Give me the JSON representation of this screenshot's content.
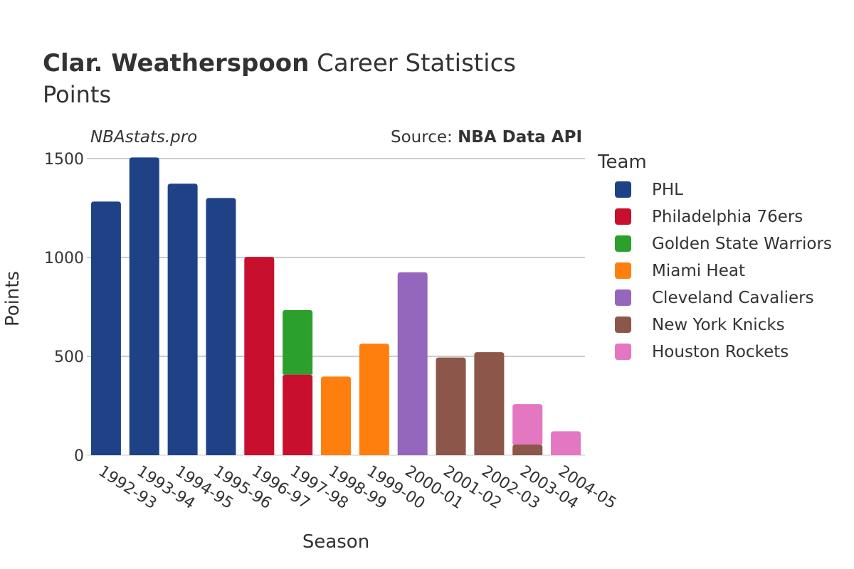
{
  "chart_data": {
    "type": "bar",
    "stacked": true,
    "title_bold": "Clar. Weatherspoon",
    "title_rest": "Career Statistics",
    "subtitle": "Points",
    "watermark": "NBAstats.pro",
    "source_label": "Source: ",
    "source_name": "NBA Data API",
    "xlabel": "Season",
    "ylabel": "Points",
    "ylim": [
      0,
      1500
    ],
    "yticks": [
      0,
      500,
      1000,
      1500
    ],
    "grid": true,
    "legend_title": "Team",
    "legend_position": "right",
    "categories": [
      "1992-93",
      "1993-94",
      "1994-95",
      "1995-96",
      "1996-97",
      "1997-98",
      "1998-99",
      "1999-00",
      "2000-01",
      "2001-02",
      "2002-03",
      "2003-04",
      "2004-05"
    ],
    "series": [
      {
        "name": "PHL",
        "color": "#1f4287",
        "values": [
          1283,
          1506,
          1373,
          1301,
          0,
          0,
          0,
          0,
          0,
          0,
          0,
          0,
          0
        ]
      },
      {
        "name": "Philadelphia 76ers",
        "color": "#c8102e",
        "values": [
          0,
          0,
          0,
          0,
          1003,
          408,
          0,
          0,
          0,
          0,
          0,
          0,
          0
        ]
      },
      {
        "name": "Golden State Warriors",
        "color": "#2ca02c",
        "values": [
          0,
          0,
          0,
          0,
          0,
          330,
          0,
          0,
          0,
          0,
          0,
          0,
          0
        ]
      },
      {
        "name": "Miami Heat",
        "color": "#ff7f0e",
        "values": [
          0,
          0,
          0,
          0,
          0,
          0,
          398,
          564,
          0,
          0,
          0,
          0,
          0
        ]
      },
      {
        "name": "Cleveland Cavaliers",
        "color": "#9467bd",
        "values": [
          0,
          0,
          0,
          0,
          0,
          0,
          0,
          0,
          925,
          0,
          0,
          0,
          0
        ]
      },
      {
        "name": "New York Knicks",
        "color": "#8c564b",
        "values": [
          0,
          0,
          0,
          0,
          0,
          0,
          0,
          0,
          0,
          494,
          521,
          55,
          0
        ]
      },
      {
        "name": "Houston Rockets",
        "color": "#e377c2",
        "values": [
          0,
          0,
          0,
          0,
          0,
          0,
          0,
          0,
          0,
          0,
          0,
          207,
          121
        ]
      }
    ]
  }
}
